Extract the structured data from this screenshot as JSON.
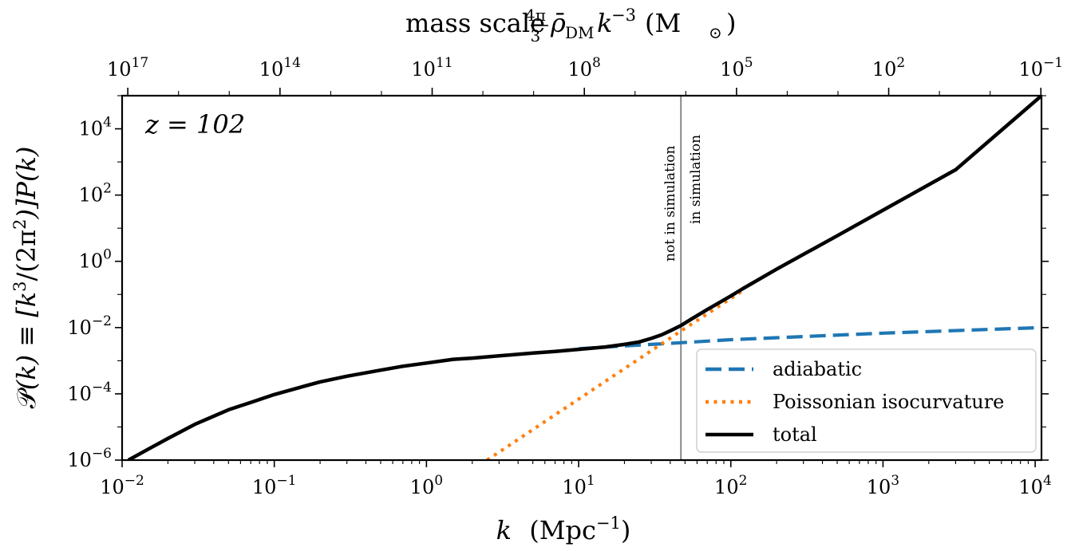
{
  "chart_data": {
    "type": "line",
    "xscale": "log",
    "yscale": "log",
    "xlim": [
      0.01,
      11000
    ],
    "ylim": [
      1e-06,
      100000
    ],
    "xlabel_parts": {
      "var": "k",
      "rest": "(Mpc",
      "exp": "−1",
      "close": ")"
    },
    "ylabel_parts": {
      "p": "𝒫",
      "k1": "(k) ≡ [k",
      "e3": "3",
      "mid": "/(2π",
      "e2": "2",
      "end": ")]P(k)"
    },
    "top_axis_label_parts": {
      "pre": "mass scale",
      "num": "4π",
      "den": "3",
      "rho": "ρ̄",
      "sub": "DM",
      "k": "k",
      "exp": "−3",
      "unit_open": "(M",
      "sun": "⊙",
      "unit_close": ")"
    },
    "annotation": "z = 102",
    "x_ticks": [
      {
        "value": 0.01,
        "base": "10",
        "exp": "−2"
      },
      {
        "value": 0.1,
        "base": "10",
        "exp": "−1"
      },
      {
        "value": 1,
        "base": "10",
        "exp": "0"
      },
      {
        "value": 10,
        "base": "10",
        "exp": "1"
      },
      {
        "value": 100,
        "base": "10",
        "exp": "2"
      },
      {
        "value": 1000,
        "base": "10",
        "exp": "3"
      },
      {
        "value": 10000,
        "base": "10",
        "exp": "4"
      }
    ],
    "y_ticks": [
      {
        "value": 1e-06,
        "base": "10",
        "exp": "−6"
      },
      {
        "value": 0.0001,
        "base": "10",
        "exp": "−4"
      },
      {
        "value": 0.01,
        "base": "10",
        "exp": "−2"
      },
      {
        "value": 1,
        "base": "10",
        "exp": "0"
      },
      {
        "value": 100,
        "base": "10",
        "exp": "2"
      },
      {
        "value": 10000,
        "base": "10",
        "exp": "4"
      }
    ],
    "top_ticks": [
      {
        "k": 0.0109,
        "base": "10",
        "exp": "17"
      },
      {
        "k": 0.109,
        "base": "10",
        "exp": "14"
      },
      {
        "k": 1.09,
        "base": "10",
        "exp": "11"
      },
      {
        "k": 10.9,
        "base": "10",
        "exp": "8"
      },
      {
        "k": 109,
        "base": "10",
        "exp": "5"
      },
      {
        "k": 1090,
        "base": "10",
        "exp": "2"
      },
      {
        "k": 10900,
        "base": "10",
        "exp": "−1"
      }
    ],
    "vline": {
      "k": 47,
      "left_label": "not in simulation",
      "right_label": "in simulation",
      "color": "#888888"
    },
    "series": [
      {
        "name": "adiabatic",
        "color": "#1f77b4",
        "style": "dashed",
        "x": [
          10,
          20,
          47,
          100,
          1000,
          11000
        ],
        "y": [
          0.0023,
          0.0028,
          0.0035,
          0.0043,
          0.0068,
          0.01
        ]
      },
      {
        "name": "Poissonian isocurvature",
        "color": "#ff7f0e",
        "style": "dotted",
        "x": [
          2.5,
          47,
          120
        ],
        "y": [
          1e-06,
          0.0079,
          0.13
        ]
      },
      {
        "name": "total",
        "color": "#000000",
        "style": "solid",
        "x": [
          0.011,
          0.015,
          0.02,
          0.03,
          0.05,
          0.07,
          0.1,
          0.15,
          0.2,
          0.3,
          0.5,
          0.7,
          1,
          1.5,
          2,
          3,
          5,
          7,
          10,
          15,
          20,
          25,
          30,
          35,
          40,
          47,
          55,
          70,
          100,
          120,
          200,
          500,
          1000,
          3000,
          11000
        ],
        "y": [
          1e-06,
          2.2e-06,
          4.5e-06,
          1.2e-05,
          3.3e-05,
          5.5e-05,
          9.5e-05,
          0.00016,
          0.00023,
          0.00034,
          0.00052,
          0.00068,
          0.00085,
          0.0011,
          0.0012,
          0.0014,
          0.0017,
          0.0019,
          0.0022,
          0.0026,
          0.0031,
          0.0037,
          0.0047,
          0.006,
          0.008,
          0.0115,
          0.018,
          0.035,
          0.09,
          0.15,
          0.58,
          5.9,
          35,
          580,
          100000
        ]
      }
    ]
  }
}
